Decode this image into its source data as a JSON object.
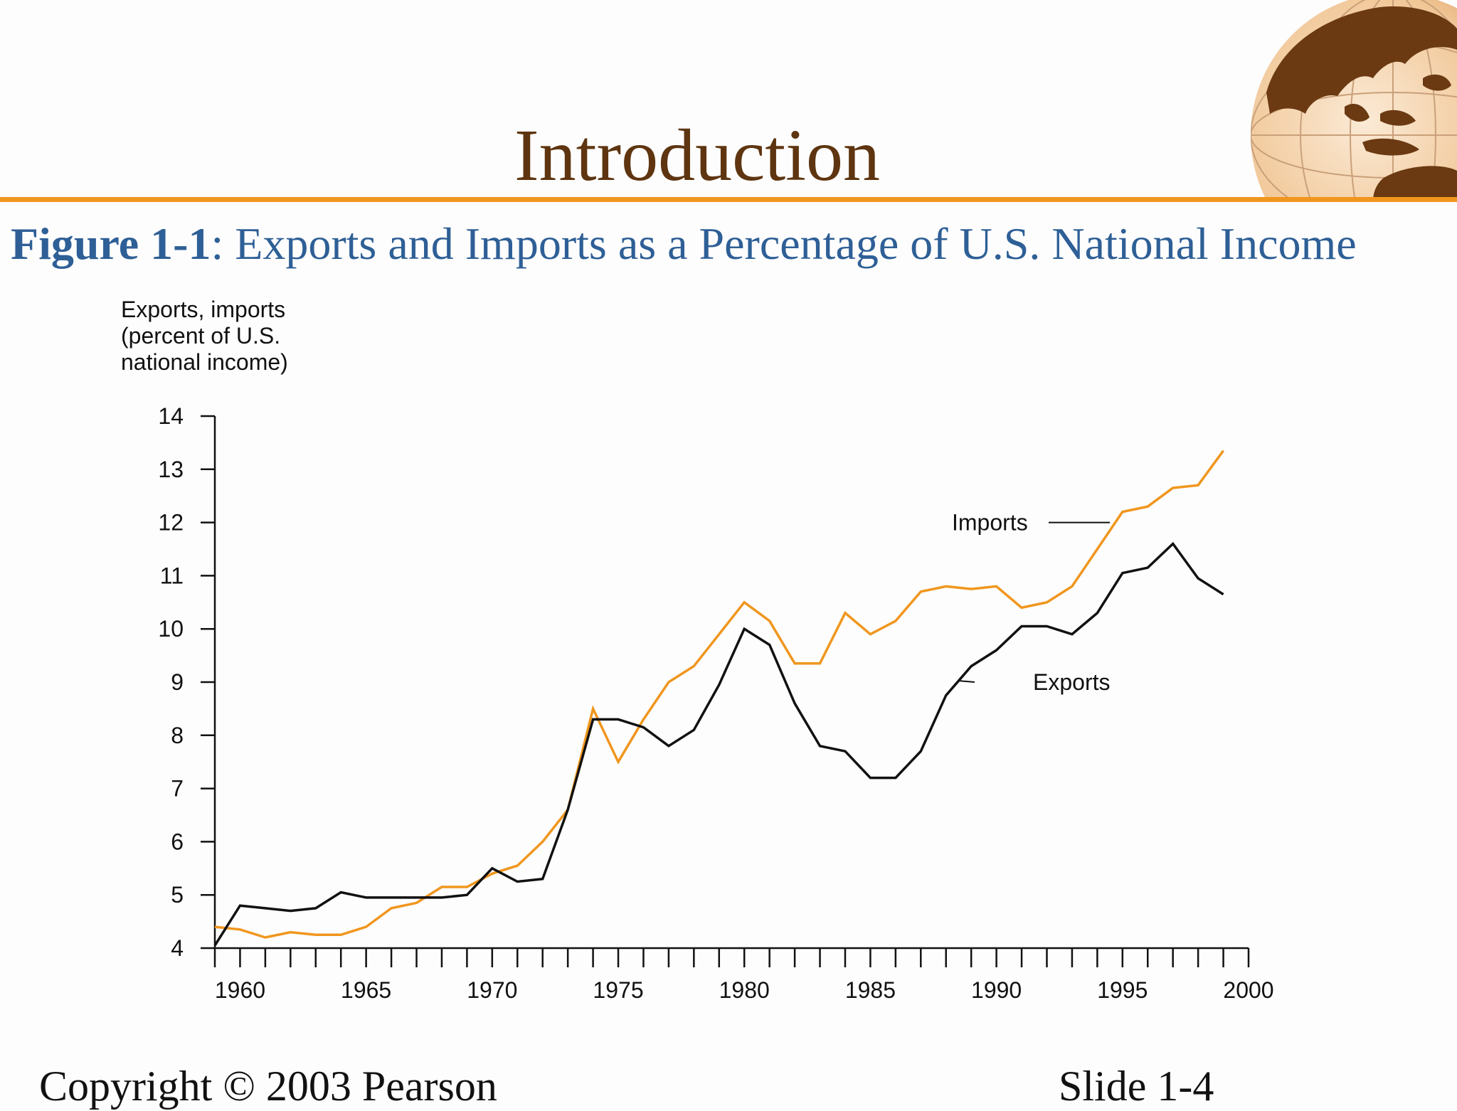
{
  "slide": {
    "title": "Introduction",
    "figure_label": "Figure 1-1",
    "figure_title_rest": ": Exports and Imports as a Percentage of U.S. National Income",
    "footer_left": "Copyright © 2003 Pearson",
    "footer_right": "Slide 1-4",
    "logo_icon": "globe-icon"
  },
  "colors": {
    "title": "#5e3510",
    "rule": "#f0961e",
    "figure_title": "#2e5f96",
    "imports": "#f0961e",
    "exports": "#111111",
    "axis": "#111111"
  },
  "chart_data": {
    "type": "line",
    "ylabel": [
      "Exports, imports",
      "(percent of U.S.",
      "national income)"
    ],
    "xlabel": "",
    "xlim": [
      1959,
      2000
    ],
    "ylim": [
      4,
      14
    ],
    "x_ticks": [
      1960,
      1965,
      1970,
      1975,
      1980,
      1985,
      1990,
      1995,
      2000
    ],
    "y_ticks": [
      4,
      5,
      6,
      7,
      8,
      9,
      10,
      11,
      12,
      13,
      14
    ],
    "grid": false,
    "x": [
      1959,
      1960,
      1961,
      1962,
      1963,
      1964,
      1965,
      1966,
      1967,
      1968,
      1969,
      1970,
      1971,
      1972,
      1973,
      1974,
      1975,
      1976,
      1977,
      1978,
      1979,
      1980,
      1981,
      1982,
      1983,
      1984,
      1985,
      1986,
      1987,
      1988,
      1989,
      1990,
      1991,
      1992,
      1993,
      1994,
      1995,
      1996,
      1997,
      1998,
      1999
    ],
    "series": [
      {
        "name": "Imports",
        "values": [
          4.4,
          4.35,
          4.2,
          4.3,
          4.25,
          4.25,
          4.4,
          4.75,
          4.85,
          5.15,
          5.15,
          5.4,
          5.55,
          6.0,
          6.6,
          8.5,
          7.5,
          8.3,
          9.0,
          9.3,
          9.9,
          10.5,
          10.15,
          9.35,
          9.35,
          10.3,
          9.9,
          10.15,
          10.7,
          10.8,
          10.75,
          10.8,
          10.4,
          10.5,
          10.8,
          11.5,
          12.2,
          12.3,
          12.65,
          12.7,
          13.35
        ],
        "label_text": "Imports"
      },
      {
        "name": "Exports",
        "values": [
          4.05,
          4.8,
          4.75,
          4.7,
          4.75,
          5.05,
          4.95,
          4.95,
          4.95,
          4.95,
          5.0,
          5.5,
          5.25,
          5.3,
          6.6,
          8.3,
          8.3,
          8.15,
          7.8,
          8.1,
          8.95,
          10.0,
          9.7,
          8.6,
          7.8,
          7.7,
          7.2,
          7.2,
          7.7,
          8.75,
          9.3,
          9.6,
          10.05,
          10.05,
          9.9,
          10.3,
          11.05,
          11.15,
          11.6,
          10.95,
          10.65
        ],
        "label_text": "Exports"
      }
    ]
  }
}
